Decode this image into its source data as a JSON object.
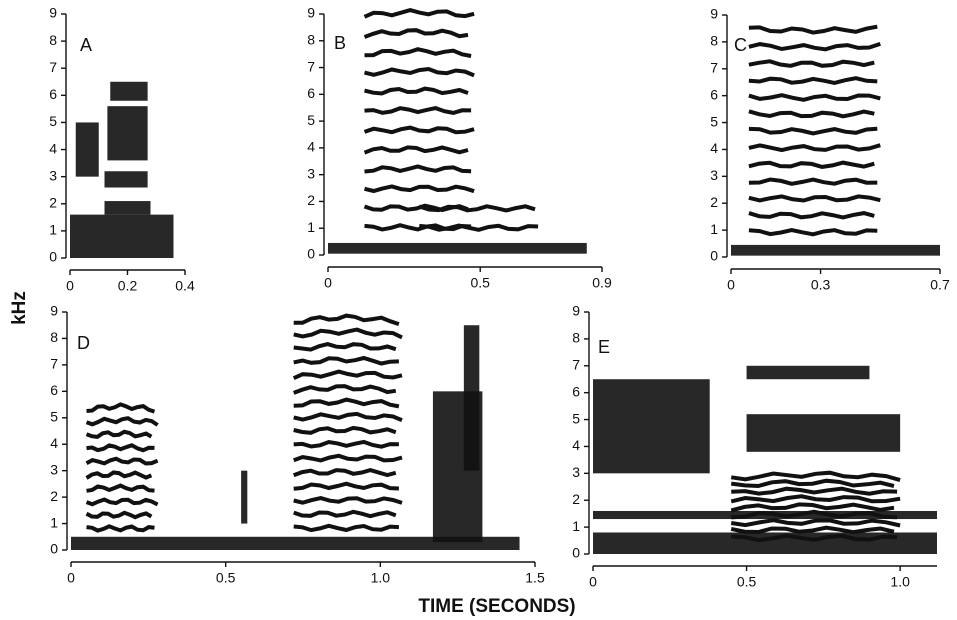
{
  "chart_data": [
    {
      "type": "spectrogram",
      "title": "A",
      "xlim": [
        0,
        0.4
      ],
      "xticks": [
        0,
        0.2,
        0.4
      ],
      "ylim": [
        0,
        9
      ],
      "yticks": [
        0,
        1,
        2,
        3,
        4,
        5,
        6,
        7,
        8,
        9
      ]
    },
    {
      "type": "spectrogram",
      "title": "B",
      "xlim": [
        0,
        0.9
      ],
      "xticks": [
        0,
        0.5,
        0.9
      ],
      "ylim": [
        0,
        9
      ],
      "yticks": [
        0,
        1,
        2,
        3,
        4,
        5,
        6,
        7,
        8,
        9
      ]
    },
    {
      "type": "spectrogram",
      "title": "C",
      "xlim": [
        0,
        0.7
      ],
      "xticks": [
        0,
        0.3,
        0.7
      ],
      "ylim": [
        0,
        9
      ],
      "yticks": [
        0,
        1,
        2,
        3,
        4,
        5,
        6,
        7,
        8,
        9
      ]
    },
    {
      "type": "spectrogram",
      "title": "D",
      "xlim": [
        0,
        1.5
      ],
      "xticks": [
        0,
        0.5,
        {
          "value": 1,
          "label": "1.0"
        },
        1.5
      ],
      "ylim": [
        0,
        9
      ],
      "yticks": [
        0,
        1,
        2,
        3,
        4,
        5,
        6,
        7,
        8,
        9
      ]
    },
    {
      "type": "spectrogram",
      "title": "E",
      "xlim": [
        0,
        1.12
      ],
      "xticks": [
        0,
        0.5,
        {
          "value": 1,
          "label": "1.0"
        }
      ],
      "ylim": [
        0,
        9
      ],
      "yticks": [
        0,
        1,
        2,
        3,
        4,
        5,
        6,
        7,
        8,
        9
      ]
    }
  ],
  "ylabel": "kHz",
  "xlabel": "TIME (SECONDS)"
}
